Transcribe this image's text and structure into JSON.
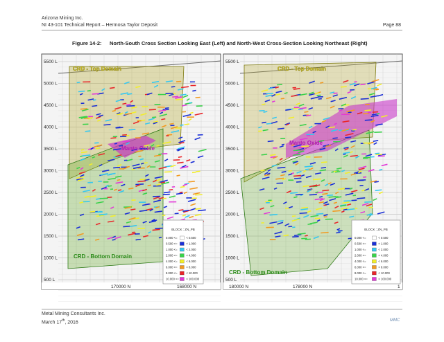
{
  "header": {
    "company": "Arizona Mining Inc.",
    "report": "NI 43-101 Technical Report – Hermosa Taylor Deposit",
    "page": "Page 88"
  },
  "figure": {
    "number": "Figure 14-2:",
    "caption": "North-South Cross Section Looking East (Left) and North-West Cross-Section Looking Northeast (Right)"
  },
  "legend": {
    "title": "BLOCK : ZN_PB",
    "rows": [
      {
        "from": "0.000 <=",
        "to": "< 0.500",
        "color": "#ffffff"
      },
      {
        "from": "0.500 <=",
        "to": "< 1.000",
        "color": "#1a2fd6"
      },
      {
        "from": "1.000 <=",
        "to": "< 2.000",
        "color": "#36c8f0"
      },
      {
        "from": "2.000 <=",
        "to": "< 4.000",
        "color": "#3ad14a"
      },
      {
        "from": "4.000 <=",
        "to": "< 6.000",
        "color": "#f2ee2a"
      },
      {
        "from": "6.000 <=",
        "to": "< 8.000",
        "color": "#f29a22"
      },
      {
        "from": "8.000 <=",
        "to": "< 10.000",
        "color": "#e8262a"
      },
      {
        "from": "10.000 <=",
        "to": "< 100.000",
        "color": "#e23ad8"
      }
    ]
  },
  "panels": [
    {
      "elevations": [
        "5500 L",
        "5000 L",
        "4500 L",
        "4000 L",
        "3500 L",
        "3000 L",
        "2500 L",
        "2000 L",
        "1500 L",
        "1000 L",
        "500 L"
      ],
      "top_domain": "CRD - Top Domain",
      "oxide": "Manto Oxide",
      "bottom_domain": "CRD - Bottom Domain",
      "eastings": [
        "170000 N",
        "168000 N"
      ]
    },
    {
      "elevations": [
        "5500 L",
        "5000 L",
        "4500 L",
        "4000 L",
        "3500 L",
        "3000 L",
        "2500 L",
        "2000 L",
        "1500 L",
        "1000 L",
        "500 L"
      ],
      "top_domain": "CRD - Top Domain",
      "oxide": "Manto Oxide",
      "bottom_domain": "CRD - Bottom Domain",
      "eastings": [
        "180000 N",
        "178000 N",
        "1"
      ]
    }
  ],
  "footer": {
    "company": "Metal Mining Consultants Inc.",
    "date_day": "March 17",
    "date_sup": "th",
    "date_year": ", 2016",
    "logo": "MMC"
  }
}
